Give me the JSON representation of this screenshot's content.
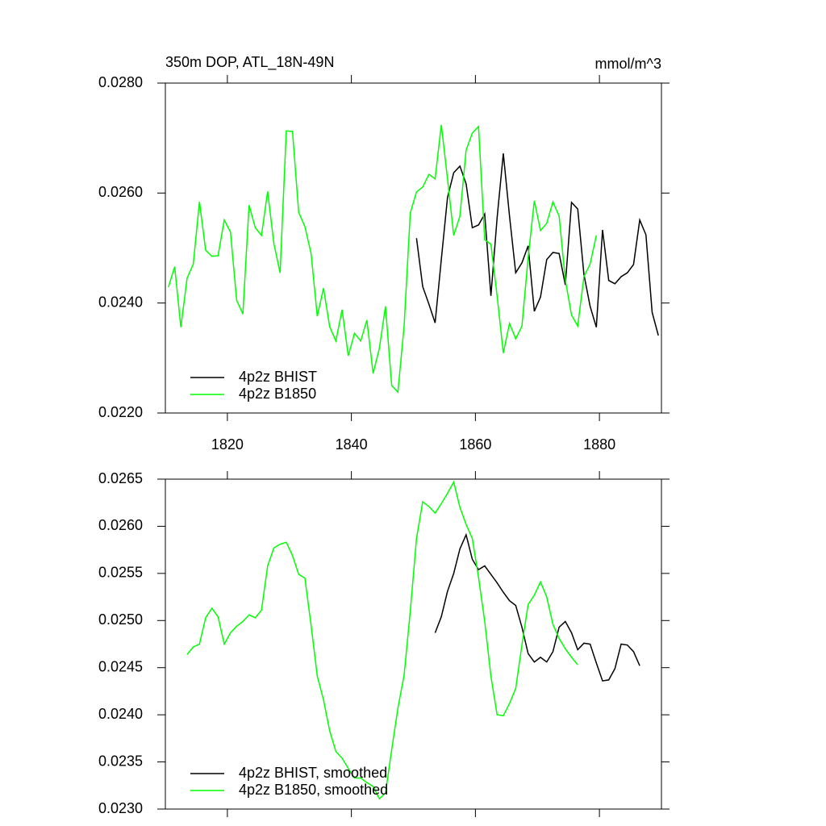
{
  "chart_data": [
    {
      "type": "line",
      "title": "350m DOP, ATL_18N-49N",
      "units": "mmol/m^3",
      "xlim": [
        1810,
        1890
      ],
      "xticks": [
        1820,
        1840,
        1860,
        1880
      ],
      "xtick_labels": true,
      "ylim": [
        0.022,
        0.028
      ],
      "yticks": [
        {
          "value": 0.022,
          "label": "0.0220"
        },
        {
          "value": 0.024,
          "label": "0.0240"
        },
        {
          "value": 0.026,
          "label": "0.0260"
        },
        {
          "value": 0.028,
          "label": "0.0280"
        }
      ],
      "legend": "lower left",
      "series": [
        {
          "name": "4p2z BHIST",
          "color": "#000000",
          "x": [
            1850.5,
            1851.5,
            1852.5,
            1853.5,
            1854.5,
            1855.5,
            1856.5,
            1857.5,
            1858.5,
            1859.5,
            1860.5,
            1861.5,
            1862.5,
            1863.5,
            1864.5,
            1865.5,
            1866.5,
            1867.5,
            1868.5,
            1869.5,
            1870.5,
            1871.5,
            1872.5,
            1873.5,
            1874.5,
            1875.5,
            1876.5,
            1877.5,
            1878.5,
            1879.5,
            1880.5,
            1881.5,
            1882.5,
            1883.5,
            1884.5,
            1885.5,
            1886.5,
            1887.5,
            1888.5,
            1889.5
          ],
          "values": [
            0.02518,
            0.0243,
            0.02398,
            0.02364,
            0.02479,
            0.02592,
            0.02637,
            0.02649,
            0.02617,
            0.02537,
            0.02542,
            0.02562,
            0.02413,
            0.02555,
            0.02672,
            0.02558,
            0.02455,
            0.02473,
            0.02504,
            0.02385,
            0.02411,
            0.02479,
            0.02492,
            0.0249,
            0.02433,
            0.02583,
            0.02571,
            0.02452,
            0.02394,
            0.02356,
            0.02533,
            0.02441,
            0.02435,
            0.02448,
            0.02455,
            0.0247,
            0.02551,
            0.02524,
            0.02383,
            0.02341
          ]
        },
        {
          "name": "4p2z B1850",
          "color": "#00ff00",
          "x": [
            1810.5,
            1811.5,
            1812.5,
            1813.5,
            1814.5,
            1815.5,
            1816.5,
            1817.5,
            1818.5,
            1819.5,
            1820.5,
            1821.5,
            1822.5,
            1823.5,
            1824.5,
            1825.5,
            1826.5,
            1827.5,
            1828.5,
            1829.5,
            1830.5,
            1831.5,
            1832.5,
            1833.5,
            1834.5,
            1835.5,
            1836.5,
            1837.5,
            1838.5,
            1839.5,
            1840.5,
            1841.5,
            1842.5,
            1843.5,
            1844.5,
            1845.5,
            1846.5,
            1847.5,
            1848.5,
            1849.5,
            1850.5,
            1851.5,
            1852.5,
            1853.5,
            1854.5,
            1855.5,
            1856.5,
            1857.5,
            1858.5,
            1859.5,
            1860.5,
            1861.5,
            1862.5,
            1863.5,
            1864.5,
            1865.5,
            1866.5,
            1867.5,
            1868.5,
            1869.5,
            1870.5,
            1871.5,
            1872.5,
            1873.5,
            1874.5,
            1875.5,
            1876.5,
            1877.5,
            1878.5,
            1879.5
          ],
          "values": [
            0.02429,
            0.02466,
            0.02356,
            0.02445,
            0.02471,
            0.02584,
            0.02496,
            0.02485,
            0.02486,
            0.02551,
            0.02529,
            0.02405,
            0.0238,
            0.02578,
            0.02537,
            0.02523,
            0.02603,
            0.02508,
            0.02455,
            0.02713,
            0.02712,
            0.02565,
            0.02539,
            0.0249,
            0.02376,
            0.02427,
            0.02357,
            0.02331,
            0.02388,
            0.02304,
            0.02345,
            0.02331,
            0.02369,
            0.02272,
            0.02317,
            0.02394,
            0.0225,
            0.02238,
            0.02358,
            0.02564,
            0.02602,
            0.02611,
            0.02634,
            0.02626,
            0.02724,
            0.02626,
            0.02523,
            0.02558,
            0.02678,
            0.02709,
            0.02721,
            0.02515,
            0.02507,
            0.02413,
            0.02309,
            0.02363,
            0.02335,
            0.02358,
            0.02482,
            0.02586,
            0.02532,
            0.02545,
            0.02584,
            0.02558,
            0.02442,
            0.02378,
            0.02358,
            0.02448,
            0.02471,
            0.02523
          ]
        }
      ]
    },
    {
      "type": "line",
      "xlim": [
        1810,
        1890
      ],
      "xticks": [
        1820,
        1840,
        1860,
        1880
      ],
      "xtick_labels": false,
      "ylim": [
        0.023,
        0.0265
      ],
      "yticks": [
        {
          "value": 0.023,
          "label": "0.0230"
        },
        {
          "value": 0.0235,
          "label": "0.0235"
        },
        {
          "value": 0.024,
          "label": "0.0240"
        },
        {
          "value": 0.0245,
          "label": "0.0245"
        },
        {
          "value": 0.025,
          "label": "0.0250"
        },
        {
          "value": 0.0255,
          "label": "0.0255"
        },
        {
          "value": 0.026,
          "label": "0.0260"
        },
        {
          "value": 0.0265,
          "label": "0.0265"
        }
      ],
      "legend": "lower left",
      "series": [
        {
          "name": "4p2z BHIST, smoothed",
          "color": "#000000",
          "x": [
            1853.5,
            1854.5,
            1855.5,
            1856.5,
            1857.5,
            1858.5,
            1859.5,
            1860.5,
            1861.5,
            1862.5,
            1863.5,
            1864.5,
            1865.5,
            1866.5,
            1867.5,
            1868.5,
            1869.5,
            1870.5,
            1871.5,
            1872.5,
            1873.5,
            1874.5,
            1875.5,
            1876.5,
            1877.5,
            1878.5,
            1879.5,
            1880.5,
            1881.5,
            1882.5,
            1883.5,
            1884.5,
            1885.5,
            1886.5
          ],
          "values": [
            0.02487,
            0.02504,
            0.02531,
            0.0255,
            0.02576,
            0.02591,
            0.02565,
            0.02554,
            0.02558,
            0.02549,
            0.0254,
            0.0253,
            0.02521,
            0.02516,
            0.02493,
            0.02465,
            0.02456,
            0.02461,
            0.02456,
            0.02467,
            0.02493,
            0.02499,
            0.02487,
            0.02469,
            0.02476,
            0.02475,
            0.02455,
            0.02436,
            0.02437,
            0.02449,
            0.02475,
            0.02474,
            0.02467,
            0.02452
          ]
        },
        {
          "name": "4p2z B1850, smoothed",
          "color": "#00ff00",
          "x": [
            1813.5,
            1814.5,
            1815.5,
            1816.5,
            1817.5,
            1818.5,
            1819.5,
            1820.5,
            1821.5,
            1822.5,
            1823.5,
            1824.5,
            1825.5,
            1826.5,
            1827.5,
            1828.5,
            1829.5,
            1830.5,
            1831.5,
            1832.5,
            1833.5,
            1834.5,
            1835.5,
            1836.5,
            1837.5,
            1838.5,
            1839.5,
            1840.5,
            1841.5,
            1842.5,
            1843.5,
            1844.5,
            1845.5,
            1846.5,
            1847.5,
            1848.5,
            1849.5,
            1850.5,
            1851.5,
            1852.5,
            1853.5,
            1854.5,
            1855.5,
            1856.5,
            1857.5,
            1858.5,
            1859.5,
            1860.5,
            1861.5,
            1862.5,
            1863.5,
            1864.5,
            1865.5,
            1866.5,
            1867.5,
            1868.5,
            1869.5,
            1870.5,
            1871.5,
            1872.5,
            1873.5,
            1874.5,
            1875.5,
            1876.5
          ],
          "values": [
            0.02464,
            0.02472,
            0.02475,
            0.02503,
            0.02513,
            0.02504,
            0.02475,
            0.02487,
            0.02494,
            0.02499,
            0.02506,
            0.02503,
            0.02511,
            0.02558,
            0.02577,
            0.02581,
            0.02583,
            0.02569,
            0.02549,
            0.02545,
            0.02495,
            0.02441,
            0.02416,
            0.02383,
            0.02361,
            0.02354,
            0.02343,
            0.02333,
            0.02333,
            0.02328,
            0.02324,
            0.02311,
            0.02317,
            0.02363,
            0.02407,
            0.02442,
            0.0251,
            0.02587,
            0.02626,
            0.02621,
            0.02614,
            0.02624,
            0.02635,
            0.02647,
            0.0262,
            0.02602,
            0.02587,
            0.02546,
            0.02499,
            0.02441,
            0.024,
            0.02399,
            0.02412,
            0.02428,
            0.02474,
            0.02517,
            0.02527,
            0.02541,
            0.02525,
            0.02496,
            0.02481,
            0.0247,
            0.02461,
            0.02453
          ]
        }
      ]
    }
  ]
}
